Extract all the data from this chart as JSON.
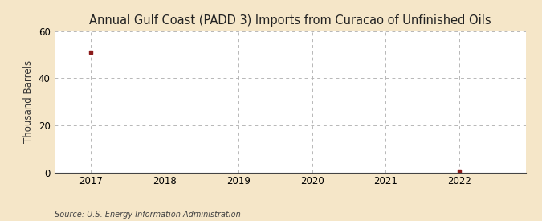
{
  "title": "Annual Gulf Coast (PADD 3) Imports from Curacao of Unfinished Oils",
  "ylabel": "Thousand Barrels",
  "source": "Source: U.S. Energy Information Administration",
  "background_color": "#f5e6c8",
  "plot_background_color": "#ffffff",
  "grid_color": "#b0b0b0",
  "x_data": [
    2017,
    2022
  ],
  "y_data": [
    51,
    0.4
  ],
  "marker_color": "#8b1a1a",
  "xlim": [
    2016.5,
    2022.9
  ],
  "ylim": [
    0,
    60
  ],
  "yticks": [
    0,
    20,
    40,
    60
  ],
  "xticks": [
    2017,
    2018,
    2019,
    2020,
    2021,
    2022
  ],
  "title_fontsize": 10.5,
  "label_fontsize": 8.5,
  "tick_fontsize": 8.5,
  "source_fontsize": 7.0
}
